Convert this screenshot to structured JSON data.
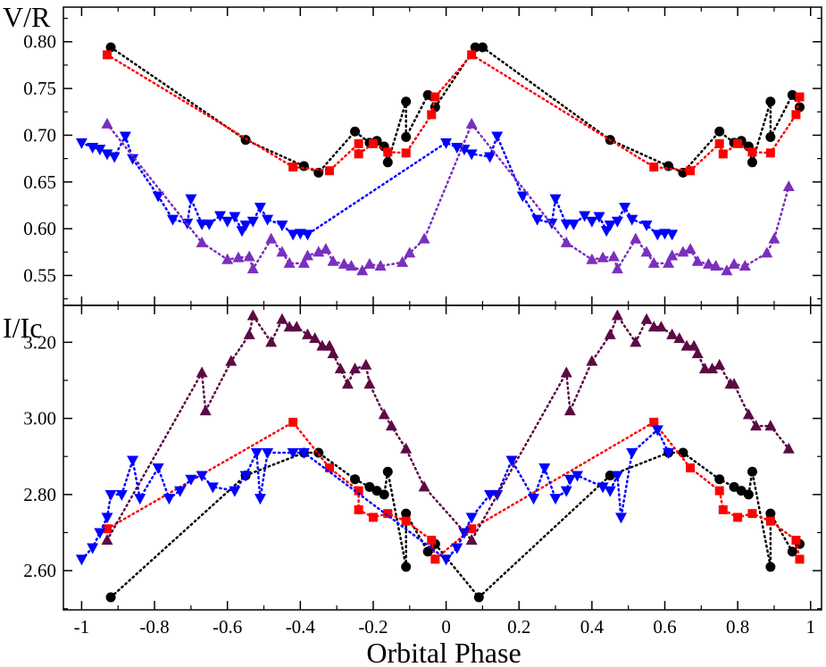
{
  "chart_data": [
    {
      "type": "scatter",
      "panel": "top",
      "ylabel": "V/R",
      "xlabel": "",
      "xlim": [
        -1.05,
        1.03
      ],
      "ylim": [
        0.518,
        0.837
      ],
      "yticks": [
        0.55,
        0.6,
        0.65,
        0.7,
        0.75,
        0.8
      ],
      "ytick_labels": [
        "0.55",
        "0.60",
        "0.65",
        "0.70",
        "0.75",
        "0.80"
      ],
      "grid": false,
      "series": [
        {
          "name": "black circles",
          "color": "#000000",
          "marker": "circle",
          "x": [
            -0.92,
            -0.55,
            -0.39,
            -0.35,
            -0.25,
            -0.21,
            -0.19,
            -0.17,
            -0.16,
            -0.11,
            -0.11,
            -0.05,
            -0.03,
            0.08,
            0.1,
            0.45,
            0.61,
            0.65,
            0.75,
            0.79,
            0.81,
            0.83,
            0.84,
            0.89,
            0.89,
            0.95,
            0.97
          ],
          "y": [
            0.794,
            0.695,
            0.667,
            0.66,
            0.704,
            0.692,
            0.694,
            0.688,
            0.671,
            0.736,
            0.698,
            0.743,
            0.73,
            0.794,
            0.794,
            0.695,
            0.667,
            0.66,
            0.704,
            0.692,
            0.694,
            0.688,
            0.671,
            0.736,
            0.698,
            0.743,
            0.73
          ]
        },
        {
          "name": "red squares",
          "color": "#ff0000",
          "marker": "square",
          "x": [
            -0.93,
            -0.42,
            -0.32,
            -0.24,
            -0.24,
            -0.2,
            -0.16,
            -0.11,
            -0.04,
            -0.03,
            0.07,
            0.57,
            0.67,
            0.75,
            0.76,
            0.8,
            0.84,
            0.89,
            0.96,
            0.97
          ],
          "y": [
            0.786,
            0.666,
            0.662,
            0.691,
            0.68,
            0.691,
            0.682,
            0.681,
            0.722,
            0.741,
            0.786,
            0.666,
            0.662,
            0.691,
            0.68,
            0.691,
            0.682,
            0.681,
            0.722,
            0.741
          ]
        },
        {
          "name": "blue down-triangles",
          "color": "#0000ff",
          "marker": "triangle-down",
          "x": [
            -1.0,
            -0.97,
            -0.95,
            -0.93,
            -0.91,
            -0.88,
            -0.86,
            -0.79,
            -0.75,
            -0.71,
            -0.7,
            -0.67,
            -0.65,
            -0.62,
            -0.6,
            -0.58,
            -0.56,
            -0.55,
            -0.53,
            -0.51,
            -0.49,
            -0.45,
            -0.42,
            -0.4,
            -0.38,
            0.0,
            0.03,
            0.05,
            0.07,
            0.12,
            0.14,
            0.21,
            0.25,
            0.29,
            0.3,
            0.33,
            0.35,
            0.38,
            0.4,
            0.42,
            0.44,
            0.45,
            0.47,
            0.49,
            0.51,
            0.55,
            0.58,
            0.6,
            0.62
          ],
          "y": [
            0.692,
            0.687,
            0.685,
            0.68,
            0.677,
            0.699,
            0.675,
            0.635,
            0.61,
            0.606,
            0.632,
            0.605,
            0.605,
            0.614,
            0.608,
            0.613,
            0.598,
            0.604,
            0.608,
            0.623,
            0.61,
            0.604,
            0.594,
            0.595,
            0.594,
            0.692,
            0.687,
            0.685,
            0.68,
            0.677,
            0.699,
            0.635,
            0.61,
            0.606,
            0.632,
            0.605,
            0.605,
            0.614,
            0.608,
            0.613,
            0.598,
            0.604,
            0.608,
            0.623,
            0.61,
            0.604,
            0.594,
            0.595,
            0.594
          ]
        },
        {
          "name": "purple up-triangles",
          "color": "#7b2fbe",
          "marker": "triangle-up",
          "x": [
            -0.93,
            -0.67,
            -0.6,
            -0.57,
            -0.54,
            -0.53,
            -0.48,
            -0.45,
            -0.43,
            -0.39,
            -0.38,
            -0.35,
            -0.33,
            -0.31,
            -0.28,
            -0.26,
            -0.23,
            -0.21,
            -0.18,
            -0.12,
            -0.1,
            -0.06,
            0.07,
            0.33,
            0.4,
            0.43,
            0.46,
            0.47,
            0.52,
            0.55,
            0.57,
            0.61,
            0.62,
            0.65,
            0.67,
            0.69,
            0.72,
            0.74,
            0.77,
            0.79,
            0.82,
            0.88,
            0.9,
            0.94
          ],
          "y": [
            0.712,
            0.585,
            0.567,
            0.569,
            0.57,
            0.557,
            0.589,
            0.575,
            0.563,
            0.563,
            0.571,
            0.575,
            0.578,
            0.565,
            0.562,
            0.56,
            0.555,
            0.562,
            0.56,
            0.564,
            0.574,
            0.589,
            0.712,
            0.585,
            0.567,
            0.569,
            0.57,
            0.557,
            0.589,
            0.575,
            0.563,
            0.563,
            0.571,
            0.575,
            0.578,
            0.565,
            0.562,
            0.56,
            0.555,
            0.562,
            0.56,
            0.574,
            0.589,
            0.645
          ]
        }
      ]
    },
    {
      "type": "scatter",
      "panel": "bottom",
      "ylabel": "I/Ic",
      "xlabel": "Orbital Phase",
      "xlim": [
        -1.05,
        1.03
      ],
      "ylim": [
        2.497,
        3.297
      ],
      "yticks": [
        2.6,
        2.8,
        3.0,
        3.2
      ],
      "ytick_labels": [
        "2.60",
        "2.80",
        "3.00",
        "3.20"
      ],
      "xticks": [
        -1,
        -0.8,
        -0.6,
        -0.4,
        -0.2,
        0,
        0.2,
        0.4,
        0.6,
        0.8,
        1
      ],
      "xtick_labels": [
        "-1",
        "-0.8",
        "-0.6",
        "-0.4",
        "-0.2",
        "0",
        "0.2",
        "0.4",
        "0.6",
        "0.8",
        "1"
      ],
      "grid": false,
      "series": [
        {
          "name": "black circles",
          "color": "#000000",
          "marker": "circle",
          "x": [
            -0.92,
            -0.55,
            -0.39,
            -0.35,
            -0.25,
            -0.21,
            -0.19,
            -0.17,
            -0.16,
            -0.11,
            -0.11,
            -0.05,
            -0.03,
            0.09,
            0.45,
            0.61,
            0.65,
            0.75,
            0.79,
            0.81,
            0.83,
            0.84,
            0.89,
            0.89,
            0.95,
            0.97
          ],
          "y": [
            2.53,
            2.85,
            2.91,
            2.91,
            2.84,
            2.82,
            2.81,
            2.8,
            2.86,
            2.61,
            2.75,
            2.65,
            2.67,
            2.53,
            2.85,
            2.91,
            2.91,
            2.84,
            2.82,
            2.81,
            2.8,
            2.86,
            2.61,
            2.75,
            2.65,
            2.67
          ]
        },
        {
          "name": "red squares",
          "color": "#ff0000",
          "marker": "square",
          "x": [
            -0.93,
            -0.42,
            -0.32,
            -0.24,
            -0.24,
            -0.2,
            -0.16,
            -0.11,
            -0.04,
            -0.03,
            0.07,
            0.57,
            0.67,
            0.75,
            0.76,
            0.8,
            0.84,
            0.89,
            0.96,
            0.97
          ],
          "y": [
            2.71,
            2.99,
            2.87,
            2.81,
            2.76,
            2.74,
            2.75,
            2.73,
            2.68,
            2.63,
            2.71,
            2.99,
            2.87,
            2.81,
            2.76,
            2.74,
            2.75,
            2.73,
            2.68,
            2.63
          ]
        },
        {
          "name": "blue down-triangles",
          "color": "#0000ff",
          "marker": "triangle-down",
          "x": [
            -1.0,
            -0.97,
            -0.95,
            -0.93,
            -0.92,
            -0.89,
            -0.86,
            -0.84,
            -0.79,
            -0.76,
            -0.73,
            -0.7,
            -0.67,
            -0.64,
            -0.58,
            -0.55,
            -0.52,
            -0.51,
            -0.49,
            -0.42,
            -0.39,
            0.0,
            0.03,
            0.05,
            0.07,
            0.12,
            0.14,
            0.18,
            0.24,
            0.27,
            0.3,
            0.33,
            0.34,
            0.36,
            0.43,
            0.45,
            0.47,
            0.48,
            0.51,
            0.58,
            0.61
          ],
          "y": [
            2.63,
            2.66,
            2.7,
            2.74,
            2.8,
            2.8,
            2.89,
            2.79,
            2.87,
            2.79,
            2.81,
            2.84,
            2.85,
            2.82,
            2.81,
            2.85,
            2.91,
            2.79,
            2.91,
            2.91,
            2.91,
            2.63,
            2.66,
            2.7,
            2.74,
            2.8,
            2.8,
            2.89,
            2.79,
            2.87,
            2.79,
            2.81,
            2.84,
            2.85,
            2.82,
            2.81,
            2.85,
            2.74,
            2.91,
            2.97,
            2.91
          ]
        },
        {
          "name": "dark purple up-triangles",
          "color": "#5c0a44",
          "marker": "triangle-up",
          "x": [
            -0.93,
            -0.67,
            -0.66,
            -0.59,
            -0.54,
            -0.53,
            -0.48,
            -0.45,
            -0.43,
            -0.41,
            -0.38,
            -0.36,
            -0.34,
            -0.32,
            -0.31,
            -0.29,
            -0.27,
            -0.25,
            -0.22,
            -0.21,
            -0.17,
            -0.15,
            -0.11,
            -0.06,
            0.07,
            0.33,
            0.34,
            0.4,
            0.45,
            0.47,
            0.52,
            0.55,
            0.57,
            0.59,
            0.62,
            0.64,
            0.66,
            0.68,
            0.69,
            0.71,
            0.73,
            0.75,
            0.78,
            0.79,
            0.83,
            0.85,
            0.89,
            0.94
          ],
          "y": [
            2.68,
            3.12,
            3.02,
            3.15,
            3.22,
            3.27,
            3.2,
            3.26,
            3.24,
            3.24,
            3.22,
            3.21,
            3.19,
            3.19,
            3.17,
            3.13,
            3.09,
            3.13,
            3.14,
            3.09,
            3.01,
            2.98,
            2.92,
            2.82,
            2.68,
            3.12,
            3.02,
            3.15,
            3.22,
            3.27,
            3.2,
            3.26,
            3.24,
            3.24,
            3.22,
            3.21,
            3.19,
            3.19,
            3.17,
            3.13,
            3.13,
            3.14,
            3.09,
            3.09,
            3.01,
            2.98,
            2.98,
            2.92
          ]
        }
      ]
    }
  ]
}
